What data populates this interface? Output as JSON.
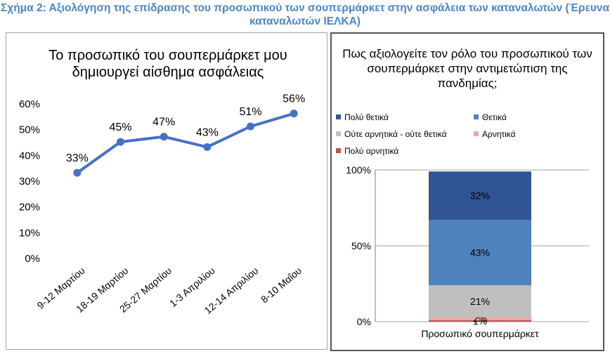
{
  "figure_title": "Σχήμα 2: Αξιολόγηση της επίδρασης του προσωπικού των σουπερμάρκετ στην ασφάλεια των καταναλωτών (Έρευνα καταναλωτών ΙΕΛΚΑ)",
  "chart_data": [
    {
      "type": "line",
      "title": "Το προσωπικό του σουπερμάρκετ μου δημιουργεί αίσθημα ασφάλειας",
      "categories": [
        "9-12 Μαρτίου",
        "18-19 Μαρτίου",
        "25-27 Μαρτίου",
        "1-3 Απριλίου",
        "12-14 Απριλίου",
        "8-10 Μαΐου"
      ],
      "values": [
        33,
        45,
        47,
        43,
        51,
        56
      ],
      "data_labels": [
        "33%",
        "45%",
        "47%",
        "43%",
        "51%",
        "56%"
      ],
      "y_ticks": [
        "0%",
        "10%",
        "20%",
        "30%",
        "40%",
        "50%",
        "60%"
      ],
      "ylim": [
        0,
        60
      ],
      "line_color": "#4472c4",
      "grid": false,
      "legend": "none"
    },
    {
      "type": "bar",
      "stacked": true,
      "title": "Πως αξιολογείτε τον ρόλο του προσωπικού των σουπερμάρκετ στην αντιμετώπιση της πανδημίας;",
      "categories": [
        "Προσωπικό σουπερμάρκετ"
      ],
      "series": [
        {
          "name": "Πολύ αρνητικά",
          "values": [
            1
          ],
          "label": "1%",
          "color": "#c0504d"
        },
        {
          "name": "Αρνητικά",
          "values": [
            2
          ],
          "label": "2%",
          "color": "#e6a9a7"
        },
        {
          "name": "Ούτε αρνητικά - ούτε θετικά",
          "values": [
            21
          ],
          "label": "21%",
          "color": "#bfbfbf"
        },
        {
          "name": "Θετικά",
          "values": [
            43
          ],
          "label": "43%",
          "color": "#4f81bd"
        },
        {
          "name": "Πολύ θετικά",
          "values": [
            32
          ],
          "label": "32%",
          "color": "#2f5597"
        }
      ],
      "legend_order": [
        "Πολύ θετικά",
        "Θετικά",
        "Ούτε αρνητικά - ούτε θετικά",
        "Αρνητικά",
        "Πολύ αρνητικά"
      ],
      "y_ticks": [
        "0%",
        "50%",
        "100%"
      ],
      "ylim": [
        0,
        100
      ],
      "grid": true,
      "legend": "top"
    }
  ]
}
